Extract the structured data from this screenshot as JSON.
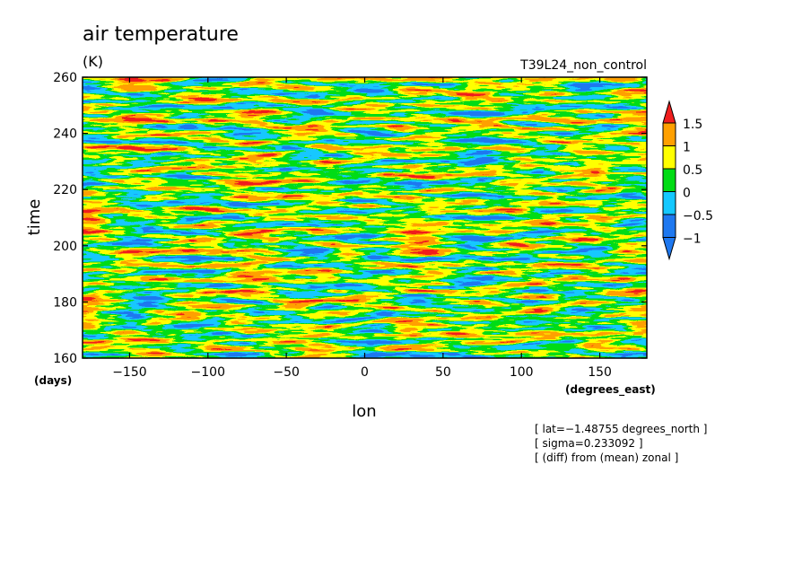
{
  "chart_data": {
    "type": "heatmap",
    "title": "air temperature",
    "units": "(K)",
    "run_label": "T39L24_non_control",
    "xlabel": "lon",
    "ylabel": "time",
    "x_unit_label": "(degrees_east)",
    "y_unit_label": "(days)",
    "xlim": [
      -180,
      180
    ],
    "ylim": [
      160,
      260
    ],
    "x_ticks": [
      -150,
      -100,
      -50,
      0,
      50,
      100,
      150
    ],
    "x_tick_labels": [
      "−150",
      "−100",
      "−50",
      "0",
      "50",
      "100",
      "150"
    ],
    "y_ticks": [
      160,
      180,
      200,
      220,
      240,
      260
    ],
    "y_tick_labels": [
      "160",
      "180",
      "200",
      "220",
      "240",
      "260"
    ],
    "colorbar": {
      "levels": [
        -1,
        -0.5,
        0,
        0.5,
        1,
        1.5
      ],
      "labels": [
        "−1",
        "−0.5",
        "0",
        "0.5",
        "1",
        "1.5"
      ],
      "colors": [
        "#1e78f0",
        "#14c8ff",
        "#00dc14",
        "#ffff00",
        "#ffa000",
        "#f01e1e"
      ],
      "under_color": "#1e78f0",
      "over_color": "#f01e1e",
      "base_color": "#1e78f0"
    },
    "annotations": [
      "[ lat=−1.48755 degrees_north ]",
      "[ sigma=0.233092 ]",
      "[ (diff) from (mean) zonal ]"
    ]
  }
}
